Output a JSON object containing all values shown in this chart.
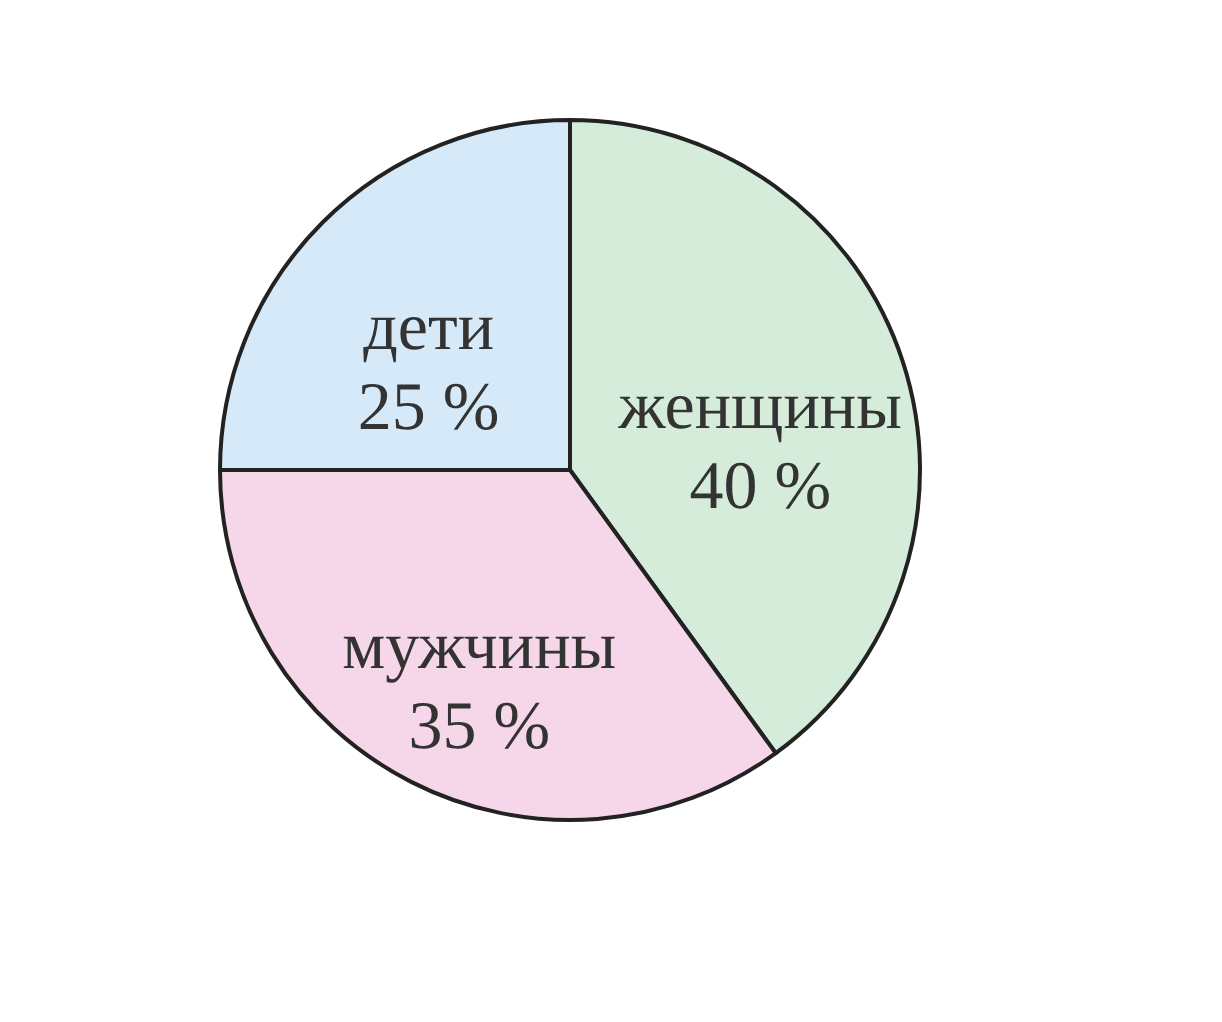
{
  "chart_data": {
    "type": "pie",
    "categories": [
      "женщины",
      "мужчины",
      "дети"
    ],
    "values": [
      40,
      35,
      25
    ],
    "value_labels": [
      "40 %",
      "35 %",
      "25 %"
    ],
    "colors": [
      "#d5ecdb",
      "#f6d6e9",
      "#d5e9f8"
    ],
    "legend": false
  }
}
